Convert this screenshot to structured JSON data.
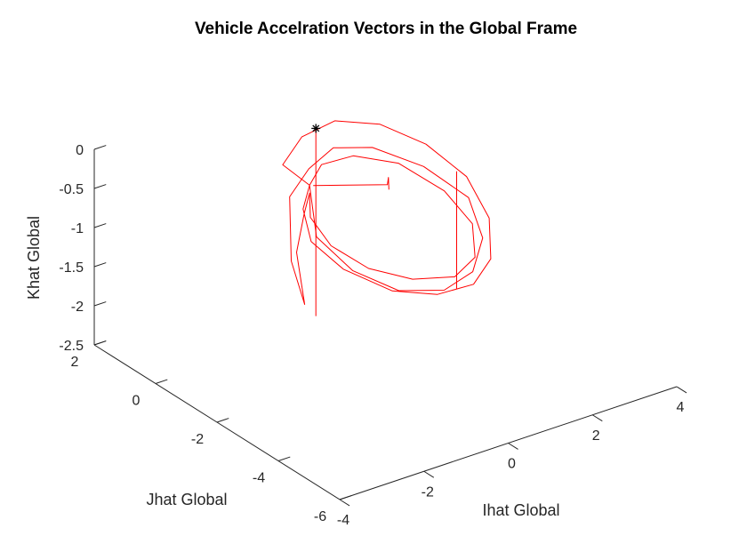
{
  "chart_data": {
    "type": "line3d",
    "title": "Vehicle Accelration Vectors in the Global Frame",
    "xlabel": "Ihat Global",
    "ylabel": "Jhat Global",
    "zlabel": "Khat Global",
    "xlim": [
      -4,
      4
    ],
    "ylim": [
      -6,
      2
    ],
    "zlim": [
      -2.5,
      0
    ],
    "xticks": [
      "-4",
      "-2",
      "0",
      "2",
      "4"
    ],
    "yticks": [
      "-6",
      "-4",
      "-2",
      "0",
      "2"
    ],
    "zticks": [
      "-2.5",
      "-2",
      "-1.5",
      "-1",
      "-0.5",
      "0"
    ],
    "grid": false,
    "series": [
      {
        "color": "#ff0000",
        "marker": "none",
        "points_xyz": [
          [
            -0.2,
            0.2,
            -0.7
          ],
          [
            -0.4,
            0.8,
            -0.55
          ],
          [
            0.2,
            1.0,
            -0.35
          ],
          [
            1.2,
            1.3,
            -0.4
          ],
          [
            2.2,
            1.2,
            -0.6
          ],
          [
            3.0,
            0.8,
            -0.9
          ],
          [
            3.6,
            0.3,
            -1.3
          ],
          [
            3.7,
            -0.3,
            -1.7
          ],
          [
            3.3,
            -0.9,
            -2.0
          ],
          [
            2.6,
            -1.3,
            -2.1
          ],
          [
            1.6,
            -1.5,
            -2.0
          ],
          [
            0.6,
            -1.4,
            -1.8
          ],
          [
            -0.2,
            -0.9,
            -1.5
          ],
          [
            -0.6,
            -0.4,
            -1.2
          ],
          [
            -0.5,
            0.0,
            -0.9
          ],
          [
            -0.2,
            0.2,
            -0.7
          ],
          [
            0.3,
            0.5,
            -0.6
          ],
          [
            1.2,
            0.7,
            -0.7
          ],
          [
            2.2,
            0.6,
            -0.95
          ],
          [
            3.0,
            0.2,
            -1.35
          ],
          [
            3.3,
            -0.3,
            -1.7
          ],
          [
            3.0,
            -0.8,
            -1.95
          ],
          [
            2.3,
            -1.1,
            -2.0
          ],
          [
            1.3,
            -1.1,
            -1.85
          ],
          [
            0.4,
            -0.9,
            -1.6
          ],
          [
            -0.2,
            -0.5,
            -1.3
          ],
          [
            -0.4,
            -0.1,
            -1.0
          ],
          [
            -0.2,
            0.2,
            -0.8
          ],
          [
            -0.4,
            0.1,
            -1.0
          ],
          [
            -0.8,
            -0.2,
            -1.35
          ],
          [
            -0.9,
            -0.6,
            -1.9
          ],
          [
            -1.0,
            -0.3,
            -1.4
          ],
          [
            -0.6,
            0.3,
            -0.8
          ],
          [
            0.0,
            0.5,
            -0.6
          ],
          [
            0.8,
            0.8,
            -0.55
          ],
          [
            1.8,
            0.9,
            -0.75
          ],
          [
            2.8,
            0.6,
            -1.1
          ],
          [
            3.5,
            0.1,
            -1.5
          ],
          [
            3.4,
            -0.5,
            -1.85
          ],
          [
            2.8,
            -1.0,
            -2.05
          ],
          [
            1.9,
            -1.3,
            -2.05
          ],
          [
            0.9,
            -1.2,
            -1.9
          ],
          [
            0.1,
            -0.8,
            -1.6
          ],
          [
            -0.4,
            -0.3,
            -1.2
          ],
          [
            -0.2,
            0.2,
            -0.7
          ]
        ]
      },
      {
        "color": "#ff0000",
        "marker": "none",
        "points_xyz": [
          [
            -0.15,
            0.15,
            -0.7
          ],
          [
            1.5,
            0.0,
            -0.95
          ],
          [
            1.6,
            0.1,
            -0.9
          ],
          [
            1.5,
            -0.05,
            -1.0
          ]
        ]
      },
      {
        "color": "#ff0000",
        "marker": "none",
        "points_xyz": [
          [
            -0.05,
            0.2,
            0.0
          ],
          [
            -0.05,
            0.2,
            -2.4
          ]
        ]
      },
      {
        "color": "#ff0000",
        "marker": "none",
        "points_xyz": [
          [
            3.0,
            -0.2,
            -1.0
          ],
          [
            3.0,
            -0.2,
            -2.5
          ]
        ]
      },
      {
        "color": "#000000",
        "marker": "asterisk",
        "points_xyz": [
          [
            -0.05,
            0.2,
            0.0
          ]
        ]
      }
    ]
  }
}
